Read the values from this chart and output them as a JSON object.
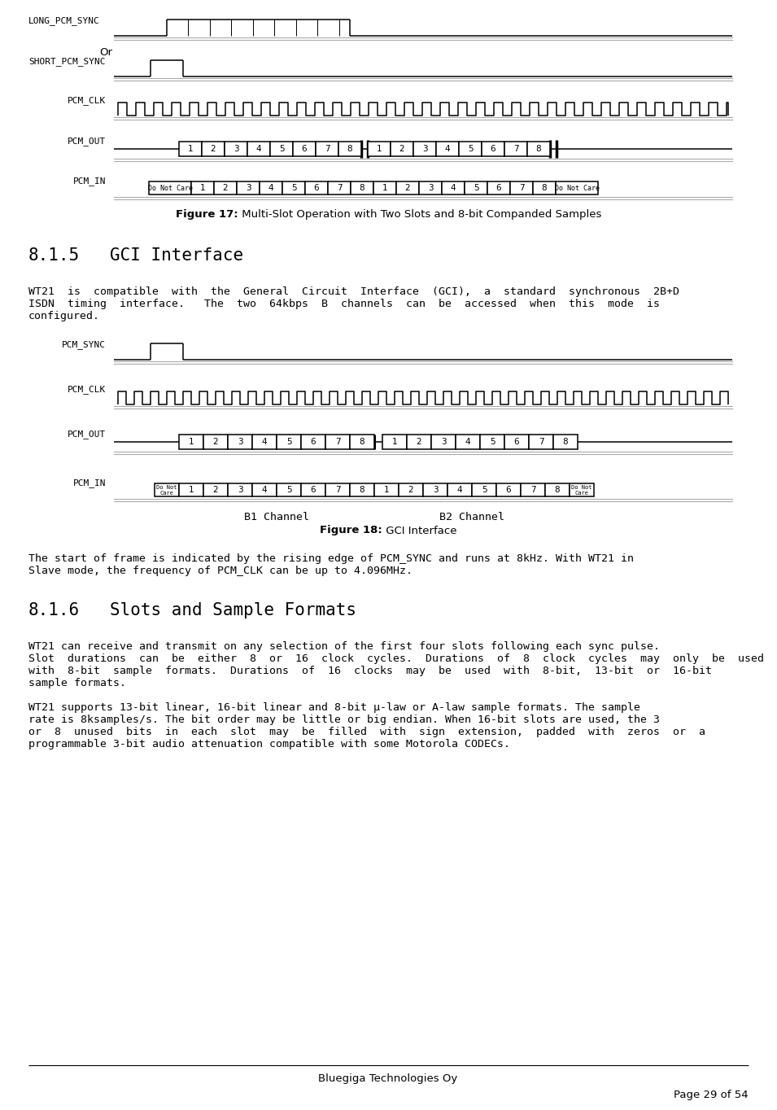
{
  "bg_color": "#ffffff",
  "fig17_caption_bold": "Figure 17:",
  "fig17_caption_rest": " Multi-Slot Operation with Two Slots and 8-bit Companded Samples",
  "fig18_caption_bold": "Figure 18:",
  "fig18_caption_rest": " GCI Interface",
  "section815_num": "8.1.5",
  "section815_title": "GCI Interface",
  "section816_num": "8.1.6",
  "section816_title": "Slots and Sample Formats",
  "para815_line1": "WT21  is  compatible  with  the  General  Circuit  Interface  (GCI),  a  standard  synchronous  2B+D",
  "para815_line2": "ISDN  timing  interface.   The  two  64kbps  B  channels  can  be  accessed  when  this  mode  is",
  "para815_line3": "configured.",
  "para_after18_line1": "The start of frame is indicated by the rising edge of PCM_SYNC and runs at 8kHz. With WT21 in",
  "para_after18_line2": "Slave mode, the frequency of PCM_CLK can be up to 4.096MHz.",
  "para816_1_line1": "WT21 can receive and transmit on any selection of the first four slots following each sync pulse.",
  "para816_1_line2": "Slot  durations  can  be  either  8  or  16  clock  cycles.  Durations  of  8  clock  cycles  may  only  be  used",
  "para816_1_line3": "with  8-bit  sample  formats.  Durations  of  16  clocks  may  be  used  with  8-bit,  13-bit  or  16-bit",
  "para816_1_line4": "sample formats.",
  "para816_2_line1": "WT21 supports 13-bit linear, 16-bit linear and 8-bit μ-law or A-law sample formats. The sample",
  "para816_2_line2": "rate is 8ksamples/s. The bit order may be little or big endian. When 16-bit slots are used, the 3",
  "para816_2_line3": "or  8  unused  bits  in  each  slot  may  be  filled  with  sign  extension,  padded  with  zeros  or  a",
  "para816_2_line4": "programmable 3-bit audio attenuation compatible with some Motorola CODECs.",
  "footer_center": "Bluegiga Technologies Oy",
  "footer_right": "Page 29 of 54",
  "labels8": [
    "1",
    "2",
    "3",
    "4",
    "5",
    "6",
    "7",
    "8"
  ]
}
